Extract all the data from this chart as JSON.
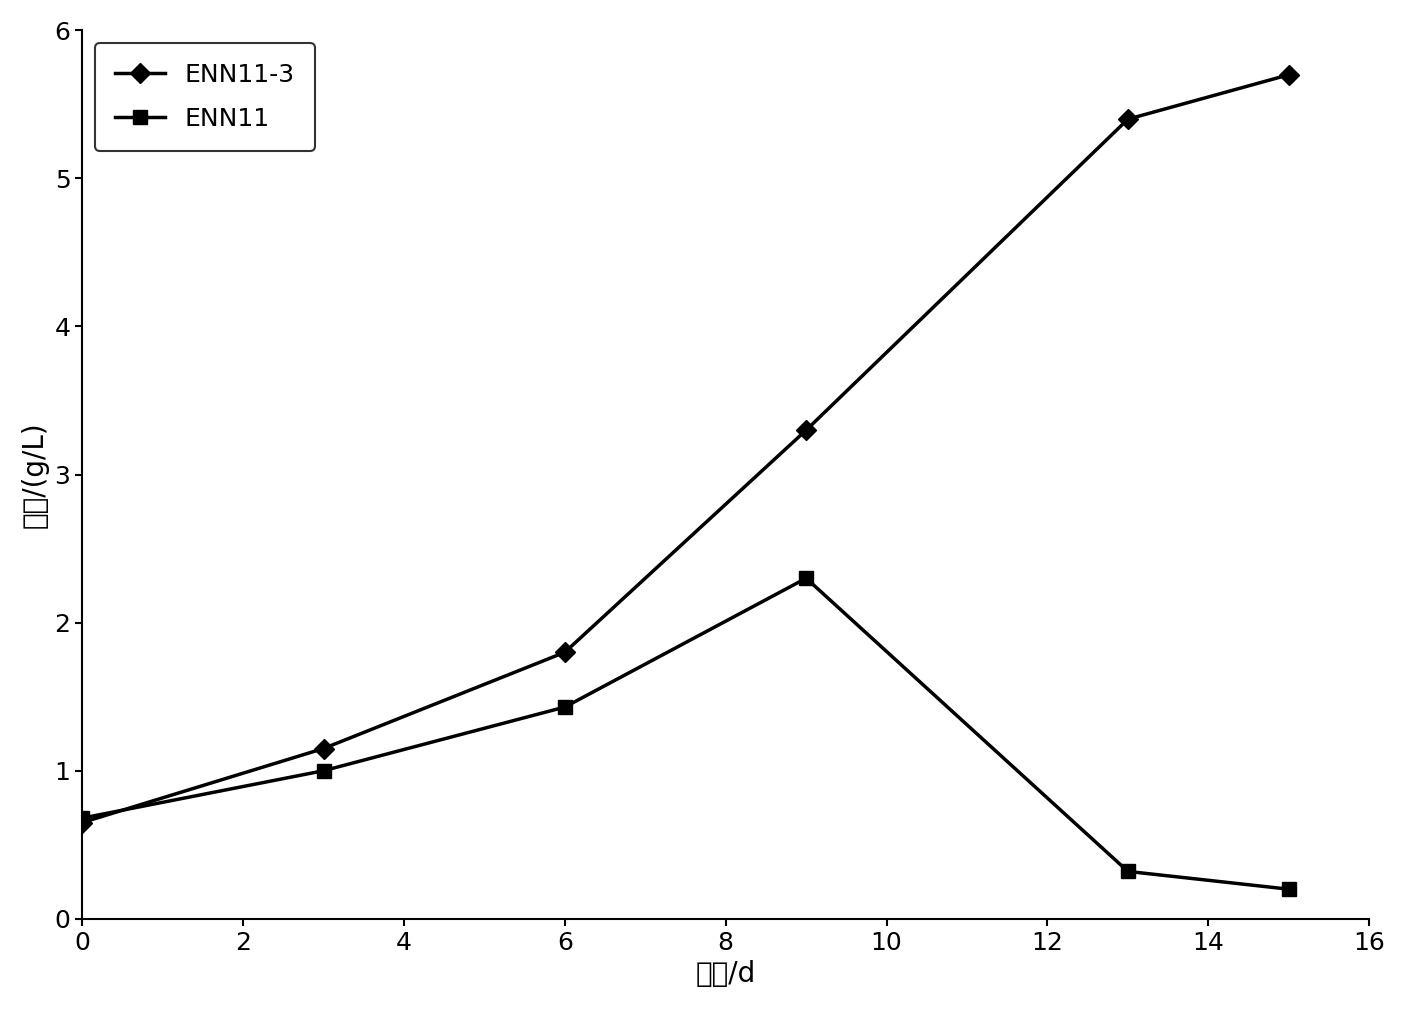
{
  "ENN11_3_x": [
    0,
    3,
    6,
    9,
    13,
    15
  ],
  "ENN11_3_y": [
    0.65,
    1.15,
    1.8,
    3.3,
    5.4,
    5.7
  ],
  "ENN11_x": [
    0,
    3,
    6,
    9,
    13,
    15
  ],
  "ENN11_y": [
    0.68,
    1.0,
    1.43,
    2.3,
    0.32,
    0.2
  ],
  "xlabel": "时间/d",
  "ylabel": "干重/(g/L)",
  "xlim": [
    0,
    16
  ],
  "ylim": [
    0,
    6
  ],
  "xticks": [
    0,
    2,
    4,
    6,
    8,
    10,
    12,
    14,
    16
  ],
  "yticks": [
    0,
    1,
    2,
    3,
    4,
    5,
    6
  ],
  "legend_ENN11_3": "ENN11-3",
  "legend_ENN11": "ENN11",
  "line_color": "#000000",
  "marker_diamond": "D",
  "marker_square": "s",
  "linewidth": 2.5,
  "markersize": 10,
  "fontsize_label": 20,
  "fontsize_tick": 18,
  "fontsize_legend": 18,
  "background_color": "#ffffff"
}
